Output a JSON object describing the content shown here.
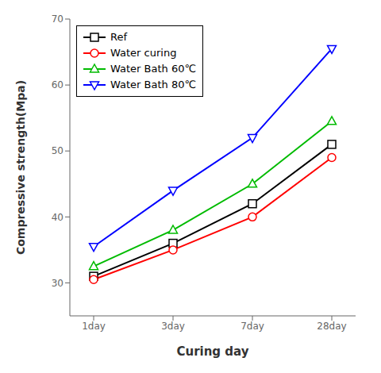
{
  "chart_data": {
    "type": "line",
    "xlabel": "Curing day",
    "ylabel": "Compressive strength(Mpa)",
    "categories": [
      "1day",
      "3day",
      "7day",
      "28day"
    ],
    "series": [
      {
        "name": "Ref",
        "color": "#000000",
        "marker": "square",
        "values": [
          31.0,
          36.0,
          42.0,
          51.0
        ]
      },
      {
        "name": "Water curing",
        "color": "#ff0000",
        "marker": "circle",
        "values": [
          30.5,
          35.0,
          40.0,
          49.0
        ]
      },
      {
        "name": "Water Bath 60℃",
        "color": "#00bb00",
        "marker": "triangle-up",
        "values": [
          32.5,
          38.0,
          45.0,
          54.5
        ]
      },
      {
        "name": "Water Bath 80℃",
        "color": "#0000ff",
        "marker": "triangle-down",
        "values": [
          35.5,
          44.0,
          52.0,
          65.5
        ]
      }
    ],
    "ylim": [
      25,
      70
    ],
    "yticks": [
      30,
      40,
      50,
      60,
      70
    ],
    "grid": false,
    "legend": "upper left"
  }
}
